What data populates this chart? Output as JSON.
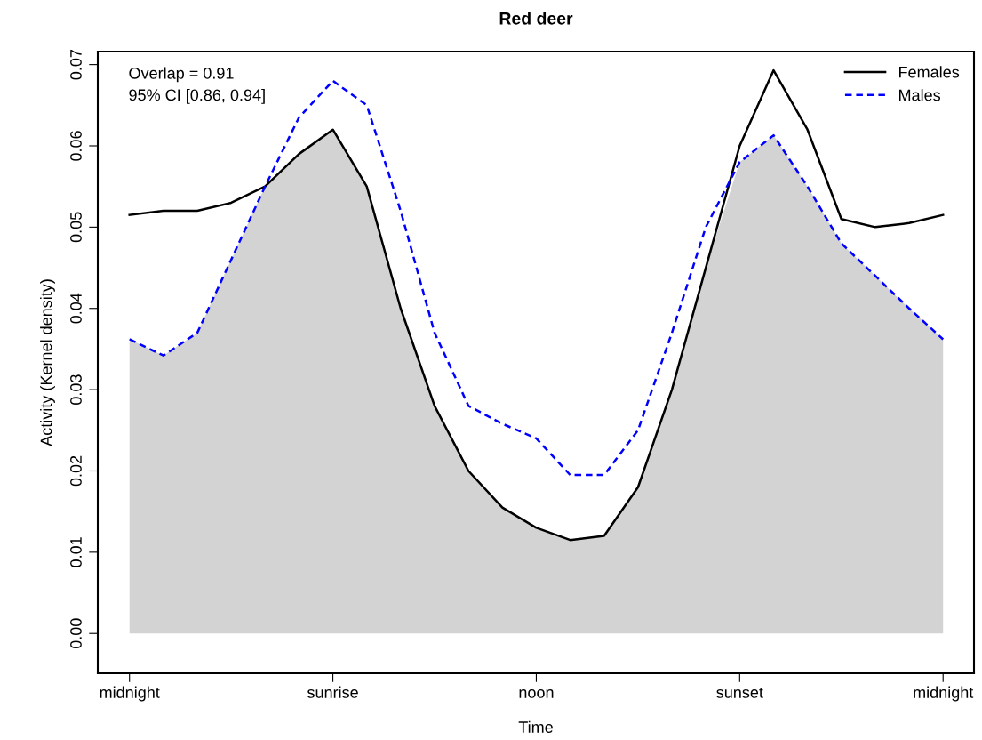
{
  "chart_data": {
    "type": "line",
    "title": "Red deer",
    "xlabel": "Time",
    "ylabel": "Activity (Kernel density)",
    "annotations": [
      "Overlap = 0.91",
      "95% CI [0.86, 0.94]"
    ],
    "categories": [
      "midnight",
      null,
      null,
      null,
      null,
      null,
      "sunrise",
      null,
      null,
      null,
      null,
      null,
      "noon",
      null,
      null,
      null,
      null,
      null,
      "sunset",
      null,
      null,
      null,
      null,
      null,
      "midnight"
    ],
    "series": [
      {
        "type": "area",
        "color": "#d3d3d3",
        "values": [
          0.0362,
          0.0342,
          0.037,
          0.046,
          0.055,
          0.059,
          0.062,
          0.055,
          0.04,
          0.028,
          0.02,
          0.0155,
          0.013,
          0.0115,
          0.012,
          0.018,
          0.03,
          0.045,
          0.058,
          0.0613,
          0.055,
          0.048,
          0.044,
          0.04,
          0.0362
        ]
      },
      {
        "name": "Females",
        "color": "#000000",
        "line_style": "solid",
        "values": [
          0.0515,
          0.052,
          0.052,
          0.053,
          0.055,
          0.059,
          0.062,
          0.055,
          0.04,
          0.028,
          0.02,
          0.0155,
          0.013,
          0.0115,
          0.012,
          0.018,
          0.03,
          0.045,
          0.06,
          0.0693,
          0.062,
          0.051,
          0.05,
          0.0505,
          0.0515
        ]
      },
      {
        "name": "Males",
        "color": "#0000ff",
        "line_style": "dashed",
        "values": [
          0.0362,
          0.0342,
          0.037,
          0.046,
          0.055,
          0.0635,
          0.068,
          0.065,
          0.052,
          0.037,
          0.028,
          0.0258,
          0.024,
          0.0195,
          0.0195,
          0.025,
          0.037,
          0.05,
          0.058,
          0.0613,
          0.055,
          0.048,
          0.044,
          0.04,
          0.0362
        ]
      }
    ],
    "ylim": [
      -0.0049,
      0.0716
    ],
    "yticks": [
      {
        "value": 0,
        "label": "0.00"
      },
      {
        "value": 0.01,
        "label": "0.01"
      },
      {
        "value": 0.02,
        "label": "0.02"
      },
      {
        "value": 0.03,
        "label": "0.03"
      },
      {
        "value": 0.04,
        "label": "0.04"
      },
      {
        "value": 0.05,
        "label": "0.05"
      },
      {
        "value": 0.06,
        "label": "0.06"
      },
      {
        "value": 0.07,
        "label": "0.07"
      }
    ],
    "grid": false,
    "legend": "top right"
  }
}
